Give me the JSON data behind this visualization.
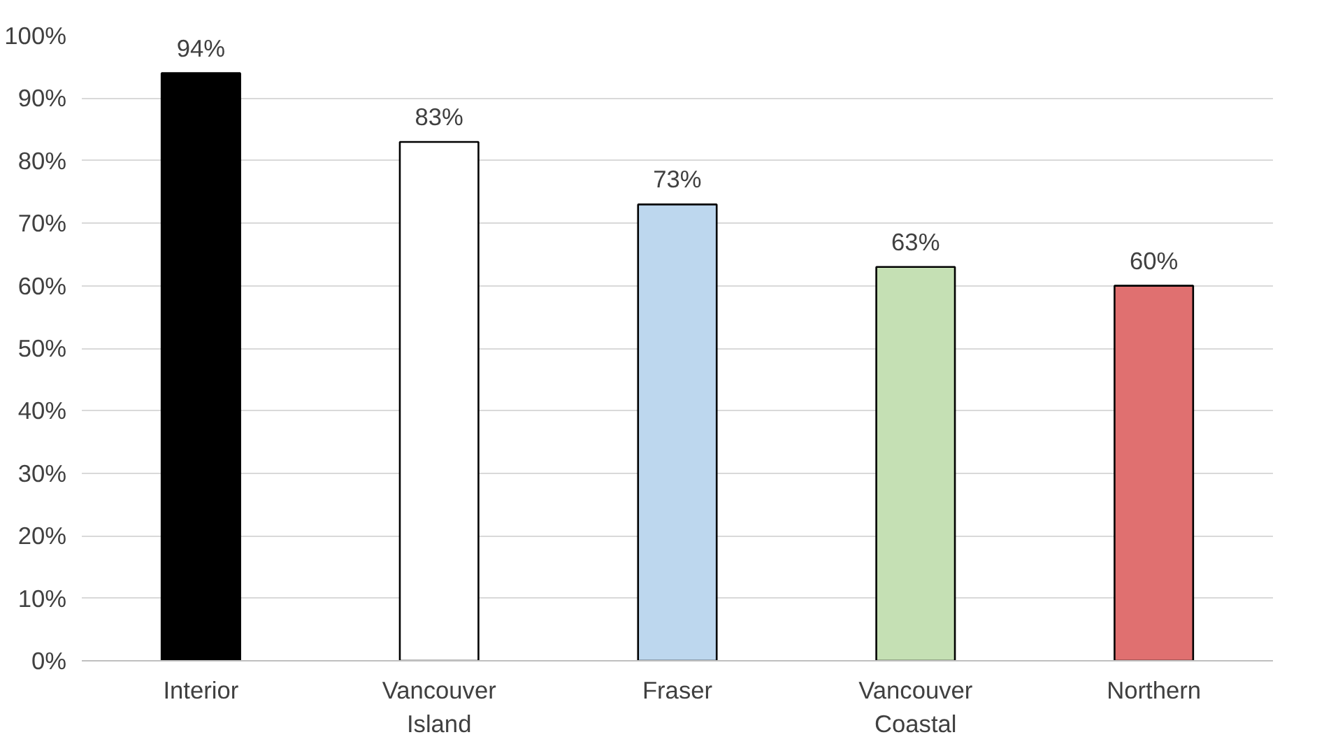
{
  "chart_data": {
    "type": "bar",
    "categories": [
      "Interior",
      "Vancouver\nIsland",
      "Fraser",
      "Vancouver\nCoastal",
      "Northern"
    ],
    "values": [
      94,
      83,
      73,
      63,
      60
    ],
    "colors": [
      "#000000",
      "#ffffff",
      "#bdd7ee",
      "#c5e0b4",
      "#e07070"
    ],
    "value_labels": [
      "94%",
      "83%",
      "73%",
      "63%",
      "60%"
    ],
    "ylim": [
      0,
      100
    ],
    "yticks": [
      {
        "value": 0,
        "label": "0%"
      },
      {
        "value": 10,
        "label": "10%"
      },
      {
        "value": 20,
        "label": "20%"
      },
      {
        "value": 30,
        "label": "30%"
      },
      {
        "value": 40,
        "label": "40%"
      },
      {
        "value": 50,
        "label": "50%"
      },
      {
        "value": 60,
        "label": "60%"
      },
      {
        "value": 70,
        "label": "70%"
      },
      {
        "value": 80,
        "label": "80%"
      },
      {
        "value": 90,
        "label": "90%"
      },
      {
        "value": 100,
        "label": "100%"
      }
    ],
    "grid": "y"
  }
}
